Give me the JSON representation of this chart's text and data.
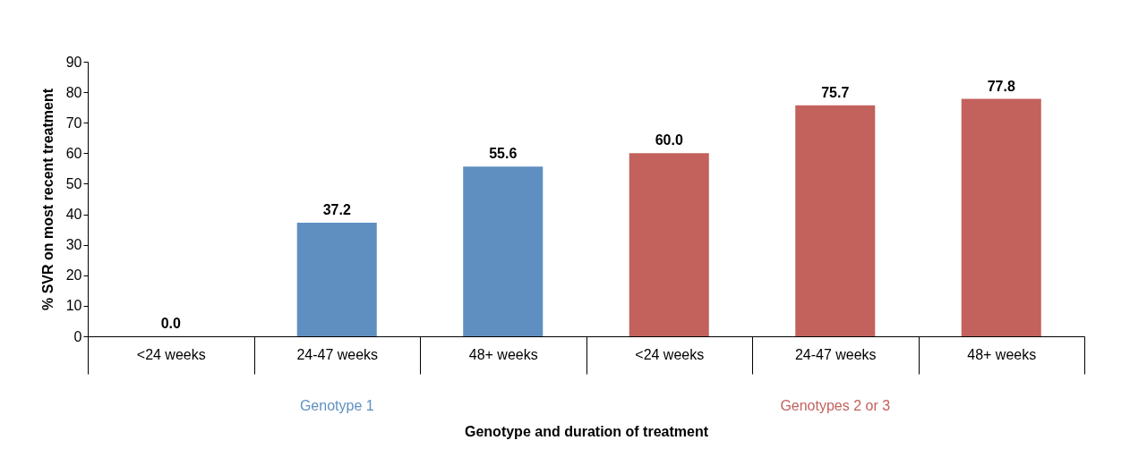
{
  "chart_data": {
    "type": "bar",
    "xlabel": "Genotype and duration of treatment",
    "ylabel": "% SVR on most recent treatment",
    "categories": [
      "<24 weeks",
      "24-47 weeks",
      "48+ weeks",
      "<24 weeks",
      "24-47 weeks",
      "48+ weeks"
    ],
    "series": [
      {
        "name": "Genotype 1",
        "color": "#5f8fc0",
        "values": [
          0.0,
          37.2,
          55.6,
          null,
          null,
          null
        ],
        "value_labels": [
          "0.0",
          "37.2",
          "55.6",
          null,
          null,
          null
        ]
      },
      {
        "name": "Genotypes 2 or 3",
        "color": "#c3615c",
        "values": [
          null,
          null,
          null,
          60.0,
          75.7,
          77.8
        ],
        "value_labels": [
          null,
          null,
          null,
          "60.0",
          "75.7",
          "77.8"
        ]
      }
    ],
    "ylim": [
      0,
      90
    ],
    "yticks": [
      0,
      10,
      20,
      30,
      40,
      50,
      60,
      70,
      80,
      90
    ],
    "grid": false,
    "legend": false
  }
}
